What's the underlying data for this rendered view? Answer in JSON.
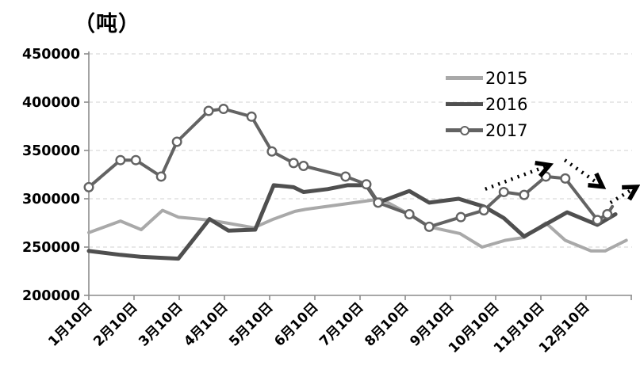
{
  "chart_data": {
    "type": "line",
    "unit_label": "（吨）",
    "y_axis": {
      "min": 200000,
      "max": 450000,
      "step": 50000,
      "tick_labels": [
        "200000",
        "250000",
        "300000",
        "350000",
        "400000",
        "450000"
      ],
      "grid": "dashed"
    },
    "x_axis": {
      "tick_labels": [
        "1月10日",
        "2月10日",
        "3月10日",
        "4月10日",
        "5月10日",
        "6月10日",
        "7月10日",
        "8月10日",
        "9月10日",
        "10月10日",
        "11月10日",
        "12月10日"
      ]
    },
    "legend": [
      "2015",
      "2016",
      "2017"
    ],
    "legend_position": "upper-right-inside",
    "series": [
      {
        "name": "2015",
        "color": "#a9a9a9",
        "width": 4,
        "markers": false,
        "points": [
          [
            0,
            265000
          ],
          [
            0.7,
            277000
          ],
          [
            1.16,
            268000
          ],
          [
            1.63,
            288000
          ],
          [
            1.98,
            281000
          ],
          [
            2.65,
            278000
          ],
          [
            3.04,
            275000
          ],
          [
            3.65,
            270000
          ],
          [
            4.09,
            279000
          ],
          [
            4.56,
            287000
          ],
          [
            4.79,
            289000
          ],
          [
            5.72,
            295000
          ],
          [
            6.19,
            298000
          ],
          [
            6.46,
            300000
          ],
          [
            7.09,
            284000
          ],
          [
            7.53,
            271000
          ],
          [
            8.21,
            264000
          ],
          [
            8.7,
            250000
          ],
          [
            9.21,
            257000
          ],
          [
            9.63,
            260000
          ],
          [
            10.11,
            275000
          ],
          [
            10.54,
            257000
          ],
          [
            11.11,
            246000
          ],
          [
            11.42,
            246000
          ],
          [
            11.89,
            257000
          ]
        ]
      },
      {
        "name": "2016",
        "color": "#4f4f4f",
        "width": 5,
        "markers": false,
        "points": [
          [
            0,
            246000
          ],
          [
            0.7,
            242000
          ],
          [
            1.14,
            240000
          ],
          [
            1.98,
            238000
          ],
          [
            2.67,
            279000
          ],
          [
            3.09,
            267000
          ],
          [
            3.68,
            268000
          ],
          [
            4.09,
            314000
          ],
          [
            4.53,
            312000
          ],
          [
            4.75,
            307000
          ],
          [
            5.28,
            310000
          ],
          [
            5.72,
            314000
          ],
          [
            6.14,
            314000
          ],
          [
            6.4,
            296000
          ],
          [
            7.09,
            308000
          ],
          [
            7.53,
            296000
          ],
          [
            8.18,
            300000
          ],
          [
            8.74,
            292000
          ],
          [
            9.18,
            280000
          ],
          [
            9.63,
            261000
          ],
          [
            10.58,
            286000
          ],
          [
            11.25,
            273000
          ],
          [
            11.65,
            284000
          ]
        ]
      },
      {
        "name": "2017",
        "color": "#636363",
        "width": 4,
        "markers": true,
        "points": [
          [
            0,
            312000
          ],
          [
            0.7,
            340000
          ],
          [
            1.04,
            340000
          ],
          [
            1.6,
            323000
          ],
          [
            1.95,
            359000
          ],
          [
            2.65,
            391000
          ],
          [
            2.98,
            393000
          ],
          [
            3.6,
            385000
          ],
          [
            4.05,
            349000
          ],
          [
            4.53,
            337000
          ],
          [
            4.75,
            334000
          ],
          [
            5.68,
            323000
          ],
          [
            6.14,
            315000
          ],
          [
            6.4,
            296000
          ],
          [
            7.09,
            284000
          ],
          [
            7.53,
            271000
          ],
          [
            8.23,
            281000
          ],
          [
            8.74,
            288000
          ],
          [
            9.18,
            307000
          ],
          [
            9.63,
            304000
          ],
          [
            10.11,
            323000
          ],
          [
            10.54,
            321000
          ],
          [
            11.25,
            278000
          ],
          [
            11.47,
            284000
          ]
        ],
        "tail": [
          11.58,
          292000
        ]
      }
    ],
    "arrows": [
      {
        "from": [
          8.77,
          310000
        ],
        "to": [
          10.14,
          334000
        ],
        "direction": "up-right"
      },
      {
        "from": [
          10.53,
          340000
        ],
        "to": [
          11.32,
          314000
        ],
        "direction": "down-right"
      },
      {
        "from": [
          11.54,
          296000
        ],
        "to": [
          12.07,
          311000
        ],
        "direction": "up-right"
      }
    ],
    "arrow_color": "#000000",
    "axis_color": "#8c8c8c",
    "grid_color": "#d9d9d9"
  }
}
